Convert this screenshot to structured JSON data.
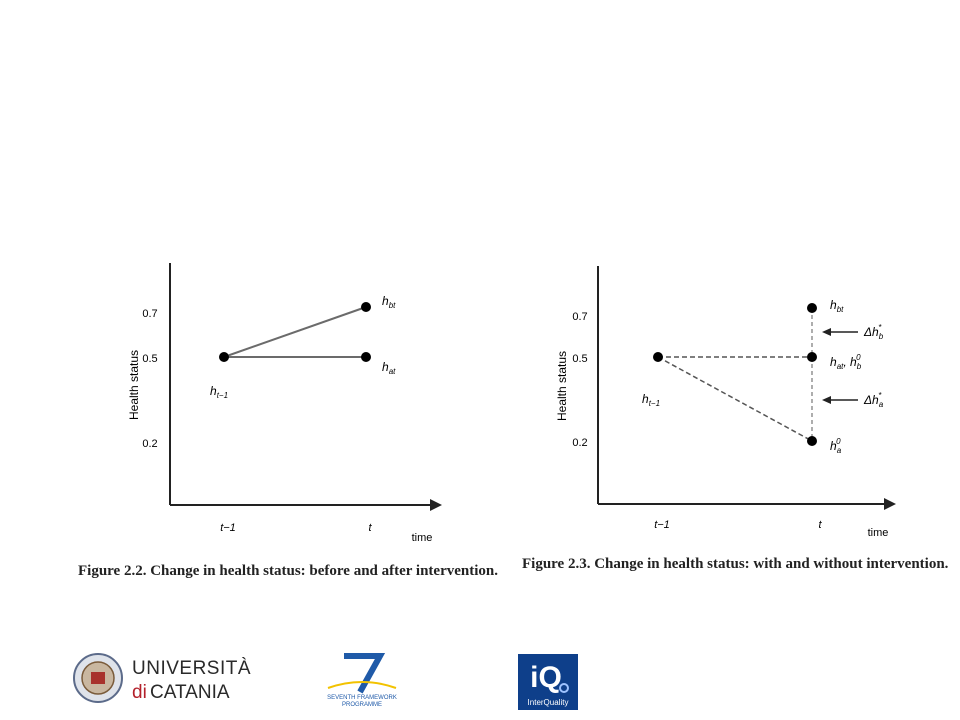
{
  "figure1": {
    "ylabel": "Health status",
    "xlabel": "time",
    "yticks": [
      "0.7",
      "0.5",
      "0.2"
    ],
    "xticks": [
      "t−1",
      "t"
    ],
    "labels": {
      "start": "h",
      "start_sub": "t−1",
      "top": "h",
      "top_sub": "bt",
      "mid": "h",
      "mid_sub": "at"
    },
    "caption": "Figure 2.2.  Change in health status: before and after intervention."
  },
  "figure2": {
    "ylabel": "Health status",
    "xlabel": "time",
    "yticks": [
      "0.7",
      "0.5",
      "0.2"
    ],
    "xticks": [
      "t−1",
      "t"
    ],
    "labels": {
      "start": "h",
      "start_sub": "t−1",
      "top": "h",
      "top_sub": "bt",
      "mid": "h",
      "mid_sub": "at",
      "mid_extra": ", h",
      "mid_extra_sub": "b",
      "mid_extra_sup": "0",
      "low": "h",
      "low_sub": "a",
      "low_sup": "0",
      "delta_b": "Δh",
      "delta_b_sub": "b",
      "delta_b_sup": "*",
      "delta_a": "Δh",
      "delta_a_sub": "a",
      "delta_a_sup": "*"
    },
    "caption": "Figure 2.3.  Change in health status: with and without intervention."
  },
  "logos": {
    "catania_line1": "UNIVERSITÀ",
    "catania_di": "di",
    "catania_line2": "CATANIA",
    "fp7_line1": "SEVENTH FRAMEWORK",
    "fp7_line2": "PROGRAMME",
    "fp7_number": "7",
    "iq_mark": "iQ",
    "iq_name": "InterQuality"
  },
  "colors": {
    "line": "#6b6b6b",
    "axis": "#222222",
    "dot": "#000000",
    "iq_bg": "#0e3f8a",
    "fp7_blue": "#1f5aa8",
    "catania_red": "#b3202a"
  }
}
